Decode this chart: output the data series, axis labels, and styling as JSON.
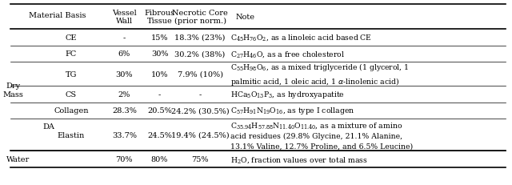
{
  "figsize": [
    6.4,
    2.32
  ],
  "dpi": 100,
  "bg_color": "#ffffff",
  "header": {
    "col1": "Material Basis",
    "col2": "Vessel\nWall",
    "col3": "Fibrous\nTissue",
    "col4": "Necrotic Core\n(prior norm.)",
    "col5": "Note"
  },
  "rows": [
    {
      "cat1": "Dry\nMass",
      "cat2": "",
      "cat3": "CE",
      "col2": "-",
      "col3": "15%",
      "col4": "18.3% (23%)",
      "col5": "$\\mathregular{C_{45}H_{76}O_2}$, as a linoleic acid based CE"
    },
    {
      "cat1": "",
      "cat2": "",
      "cat3": "FC",
      "col2": "6%",
      "col3": "30%",
      "col4": "30.2% (38%)",
      "col5": "$\\mathregular{C_{27}H_{46}O}$, as a free cholesterol"
    },
    {
      "cat1": "",
      "cat2": "",
      "cat3": "TG",
      "col2": "30%",
      "col3": "10%",
      "col4": "7.9% (10%)",
      "col5": "$\\mathregular{C_{55}H_{98}O_6}$, as a mixed triglyceride (1 glycerol, 1\npalmitic acid, 1 oleic acid, 1 $\\alpha$-linolenic acid)"
    },
    {
      "cat1": "",
      "cat2": "",
      "cat3": "CS",
      "col2": "2%",
      "col3": "-",
      "col4": "-",
      "col5": "$\\mathregular{HCa_5O_{13}P_3}$, as hydroxyapatite"
    },
    {
      "cat1": "",
      "cat2": "DA",
      "cat3": "Collagen",
      "col2": "28.3%",
      "col3": "20.5%",
      "col4": "24.2% (30.5%)",
      "col5": "$\\mathregular{C_{57}H_{91}N_{19}O_{16}}$, as type I collagen"
    },
    {
      "cat1": "",
      "cat2": "",
      "cat3": "Elastin",
      "col2": "33.7%",
      "col3": "24.5%",
      "col4": "19.4% (24.5%)",
      "col5": "$\\mathregular{C_{35.94}H_{57.88}N_{11.40}O_{11.40}}$, as a mixture of amino\nacid residues (29.8% Glycine, 21.1% Alanine,\n13.1% Valine, 12.7% Proline, and 6.5% Leucine)"
    },
    {
      "cat1": "Water",
      "cat2": "",
      "cat3": "",
      "col2": "70%",
      "col3": "80%",
      "col4": "75%",
      "col5": "$\\mathregular{H_2O}$, fraction values over total mass"
    }
  ],
  "line_color": "#000000",
  "text_color": "#000000",
  "font_size": 7.0,
  "header_font_size": 7.0
}
